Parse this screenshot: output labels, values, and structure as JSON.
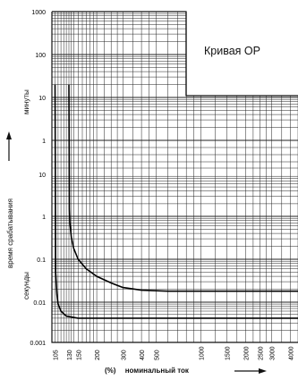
{
  "chart_data": {
    "type": "line",
    "title": "Кривая ОР",
    "xlabel_unit": "(%)",
    "xlabel": "номинальный ток",
    "ylabel_main": "время срабатывания",
    "ylabel_top_unit": "минуты",
    "ylabel_bottom_unit": "секунды",
    "x_scale": "log",
    "xlim": [
      100,
      4500
    ],
    "x_ticks": [
      105,
      130,
      150,
      200,
      300,
      400,
      500,
      1000,
      1500,
      2000,
      2500,
      3000,
      4000
    ],
    "y_ticks_minutes": [
      "1000",
      "100",
      "10",
      "1"
    ],
    "y_ticks_seconds": [
      "10",
      "1",
      "0.1",
      "0.01",
      "0.001"
    ],
    "grid": true,
    "series": [
      {
        "x": [
          130,
          131,
          132,
          135,
          140,
          150,
          170,
          200,
          250,
          300,
          400,
          600,
          1000,
          2000,
          4500
        ],
        "y_seconds": [
          1200,
          1.5,
          0.7,
          0.33,
          0.18,
          0.1,
          0.06,
          0.04,
          0.028,
          0.022,
          0.019,
          0.018,
          0.018,
          0.018,
          0.018
        ]
      },
      {
        "x": [
          105,
          106,
          108,
          110,
          115,
          125,
          150,
          200,
          400,
          1000,
          4500
        ],
        "y_seconds": [
          1200,
          0.05,
          0.015,
          0.009,
          0.006,
          0.0045,
          0.004,
          0.004,
          0.004,
          0.004,
          0.004
        ]
      }
    ]
  }
}
